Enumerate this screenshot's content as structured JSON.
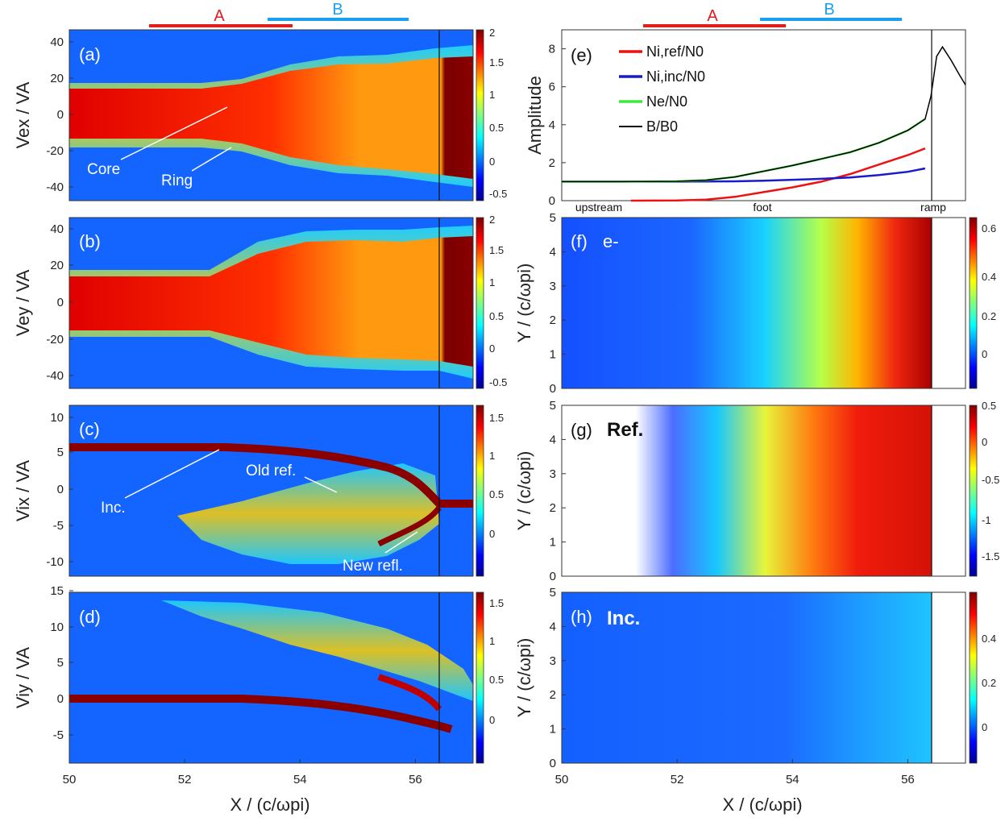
{
  "region_bars": {
    "A": {
      "label": "A",
      "color": "#e11d1d",
      "x_range": [
        51.4,
        53.9
      ]
    },
    "B": {
      "label": "B",
      "color": "#1aa0ef",
      "x_range": [
        53.4,
        55.9
      ]
    }
  },
  "shock_ramp_x": 56.4,
  "xlabel": "X / (c/ωpi)",
  "panels": {
    "a": {
      "tag": "(a)",
      "ylabel": "Vex / VA",
      "yticks": [
        "40",
        "20",
        "0",
        "-20",
        "-40"
      ],
      "cbar_ticks": [
        "2",
        "1.5",
        "1",
        "0.5",
        "0",
        "-0.5"
      ],
      "annotations": {
        "core": "Core",
        "ring": "Ring"
      }
    },
    "b": {
      "tag": "(b)",
      "ylabel": "Vey / VA",
      "yticks": [
        "40",
        "20",
        "0",
        "-20",
        "-40"
      ],
      "cbar_ticks": [
        "2",
        "1.5",
        "1",
        "0.5",
        "0",
        "-0.5"
      ]
    },
    "c": {
      "tag": "(c)",
      "ylabel": "Vix / VA",
      "yticks": [
        "10",
        "5",
        "0",
        "-5",
        "-10"
      ],
      "cbar_ticks": [
        "1.5",
        "1",
        "0.5",
        "0"
      ],
      "annotations": {
        "inc": "Inc.",
        "old": "Old ref.",
        "new": "New refl."
      }
    },
    "d": {
      "tag": "(d)",
      "ylabel": "Viy / VA",
      "yticks": [
        "15",
        "10",
        "5",
        "0",
        "-5"
      ],
      "cbar_ticks": [
        "1.5",
        "1",
        "0.5",
        "0"
      ]
    },
    "f": {
      "tag": "(f)",
      "name": "e-",
      "ylabel": "Y / (c/ωpi)",
      "yticks": [
        "5",
        "4",
        "3",
        "2",
        "1",
        "0"
      ],
      "cbar_ticks": [
        "0.6",
        "0.4",
        "0.2",
        "0"
      ]
    },
    "g": {
      "tag": "(g)",
      "name": "Ref.",
      "ylabel": "Y / (c/ωpi)",
      "yticks": [
        "5",
        "4",
        "3",
        "2",
        "1",
        "0"
      ],
      "cbar_ticks": [
        "0.5",
        "0",
        "-0.5",
        "-1",
        "-1.5"
      ]
    },
    "h": {
      "tag": "(h)",
      "name": "Inc.",
      "ylabel": "Y / (c/ωpi)",
      "yticks": [
        "5",
        "4",
        "3",
        "2",
        "1",
        "0"
      ],
      "cbar_ticks": [
        "0.4",
        "0.2",
        "0"
      ]
    }
  },
  "xticks": [
    "50",
    "52",
    "54",
    "56"
  ],
  "chart_data": {
    "type": "line",
    "tag": "(e)",
    "ylabel": "Amplitude",
    "xlim": [
      50,
      57
    ],
    "ylim": [
      0,
      9
    ],
    "yticks": [
      "8",
      "6",
      "4",
      "2",
      "0"
    ],
    "region_labels": {
      "upstream": "upstream",
      "foot": "foot",
      "ramp": "ramp"
    },
    "series": [
      {
        "name": "Ni,ref/N0",
        "color": "#ee1111",
        "x": [
          51.2,
          52.0,
          52.5,
          53.0,
          53.5,
          54.0,
          54.5,
          55.0,
          55.5,
          56.0,
          56.3
        ],
        "y": [
          0.0,
          0.01,
          0.05,
          0.2,
          0.45,
          0.7,
          1.0,
          1.4,
          1.9,
          2.4,
          2.75
        ]
      },
      {
        "name": "Ni,inc/N0",
        "color": "#1a1acc",
        "x": [
          50.0,
          51.0,
          52.0,
          53.0,
          53.5,
          54.0,
          54.5,
          55.0,
          55.5,
          56.0,
          56.3
        ],
        "y": [
          1.0,
          1.0,
          1.0,
          1.02,
          1.05,
          1.1,
          1.15,
          1.22,
          1.35,
          1.52,
          1.7
        ]
      },
      {
        "name": "Ne/N0",
        "color": "#3ee83e",
        "x": [
          50.0,
          51.0,
          52.0,
          52.5,
          53.0,
          53.5,
          54.0,
          54.5,
          55.0,
          55.5,
          56.0,
          56.3
        ],
        "y": [
          1.0,
          1.0,
          1.02,
          1.08,
          1.25,
          1.55,
          1.85,
          2.2,
          2.55,
          3.05,
          3.7,
          4.3
        ]
      },
      {
        "name": "B/B0",
        "color": "#000000",
        "x": [
          50.0,
          51.0,
          52.0,
          52.5,
          53.0,
          53.5,
          54.0,
          54.5,
          55.0,
          55.5,
          56.0,
          56.3,
          56.4,
          56.5,
          56.6,
          56.75,
          56.9,
          57.0
        ],
        "y": [
          1.0,
          1.0,
          1.02,
          1.08,
          1.25,
          1.55,
          1.85,
          2.2,
          2.55,
          3.05,
          3.7,
          4.3,
          5.5,
          7.6,
          8.1,
          7.4,
          6.6,
          6.1
        ]
      }
    ]
  }
}
